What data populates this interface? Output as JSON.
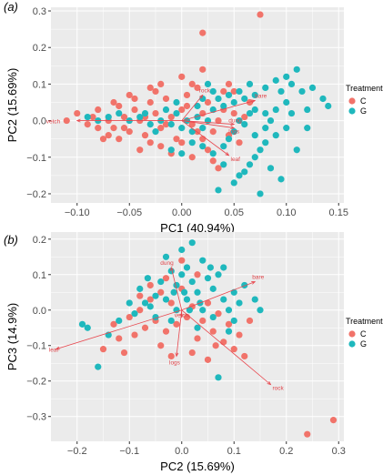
{
  "colors": {
    "C": "#f1736a",
    "G": "#1fb8bd",
    "arrow": "#e8474e",
    "panel_bg": "#ebebeb",
    "grid": "#ffffff"
  },
  "legend": {
    "title": "Treatment",
    "items": [
      "C",
      "G"
    ]
  },
  "chart_data": [
    {
      "type": "scatter",
      "panel_label": "(a)",
      "xlabel": "PC1 (40.94%)",
      "ylabel": "PC2 (15.69%)",
      "xlim": [
        -0.125,
        0.155
      ],
      "ylim": [
        -0.225,
        0.31
      ],
      "xticks": [
        -0.1,
        -0.05,
        0.0,
        0.05,
        0.1,
        0.15
      ],
      "xtick_labels": [
        "−0.10",
        "−0.05",
        "0.00",
        "0.05",
        "0.10",
        "0.15"
      ],
      "yticks": [
        -0.2,
        -0.1,
        0.0,
        0.1,
        0.2,
        0.3
      ],
      "ytick_labels": [
        "−0.2",
        "−0.1",
        "0.0",
        "0.1",
        "0.2",
        "0.3"
      ],
      "grid": true,
      "series": [
        {
          "name": "C",
          "points": [
            [
              0.075,
              0.29
            ],
            [
              0.02,
              0.24
            ],
            [
              -0.11,
              0.0
            ],
            [
              -0.1,
              0.02
            ],
            [
              -0.09,
              -0.01
            ],
            [
              -0.08,
              0.03
            ],
            [
              -0.07,
              0.0
            ],
            [
              -0.065,
              -0.02
            ],
            [
              -0.06,
              0.04
            ],
            [
              -0.055,
              0.01
            ],
            [
              -0.05,
              -0.03
            ],
            [
              -0.045,
              0.03
            ],
            [
              -0.04,
              0.0
            ],
            [
              -0.035,
              -0.04
            ],
            [
              -0.03,
              0.05
            ],
            [
              -0.025,
              0.02
            ],
            [
              -0.02,
              -0.02
            ],
            [
              -0.015,
              0.06
            ],
            [
              -0.01,
              0.01
            ],
            [
              -0.005,
              -0.05
            ],
            [
              0.0,
              0.03
            ],
            [
              0.005,
              0.07
            ],
            [
              0.01,
              -0.01
            ],
            [
              0.015,
              0.09
            ],
            [
              0.02,
              0.02
            ],
            [
              0.025,
              0.05
            ],
            [
              0.03,
              -0.03
            ],
            [
              -0.03,
              -0.06
            ],
            [
              -0.04,
              -0.08
            ],
            [
              -0.02,
              -0.07
            ],
            [
              -0.01,
              -0.09
            ],
            [
              0.0,
              -0.06
            ],
            [
              0.01,
              -0.1
            ],
            [
              0.02,
              -0.05
            ],
            [
              -0.06,
              -0.05
            ],
            [
              -0.05,
              0.07
            ],
            [
              -0.03,
              0.09
            ],
            [
              -0.02,
              0.1
            ],
            [
              0.0,
              0.12
            ],
            [
              0.01,
              0.1
            ],
            [
              -0.07,
              -0.04
            ],
            [
              -0.08,
              -0.02
            ],
            [
              0.035,
              0.0
            ],
            [
              0.04,
              0.03
            ],
            [
              0.045,
              -0.04
            ],
            [
              0.05,
              0.02
            ],
            [
              0.055,
              -0.06
            ],
            [
              0.06,
              0.01
            ],
            [
              0.03,
              -0.11
            ],
            [
              0.035,
              -0.13
            ],
            [
              0.04,
              0.08
            ],
            [
              0.015,
              -0.03
            ],
            [
              -0.045,
              0.06
            ],
            [
              -0.055,
              -0.02
            ],
            [
              -0.025,
              0.08
            ],
            [
              0.025,
              -0.08
            ],
            [
              -0.035,
              0.01
            ],
            [
              -0.015,
              -0.01
            ],
            [
              0.005,
              0.04
            ],
            [
              0.065,
              0.05
            ],
            [
              -0.085,
              0.01
            ],
            [
              -0.075,
              -0.05
            ],
            [
              -0.065,
              0.05
            ],
            [
              0.045,
              0.1
            ],
            [
              0.02,
              0.14
            ],
            [
              0.05,
              0.08
            ]
          ]
        },
        {
          "name": "G",
          "points": [
            [
              0.11,
              0.14
            ],
            [
              0.135,
              0.06
            ],
            [
              0.14,
              0.04
            ],
            [
              0.12,
              0.03
            ],
            [
              0.115,
              0.08
            ],
            [
              0.1,
              0.12
            ],
            [
              0.09,
              0.11
            ],
            [
              0.08,
              0.09
            ],
            [
              0.07,
              0.07
            ],
            [
              0.065,
              0.1
            ],
            [
              0.06,
              0.06
            ],
            [
              0.055,
              0.08
            ],
            [
              0.05,
              0.05
            ],
            [
              0.045,
              0.07
            ],
            [
              0.04,
              0.04
            ],
            [
              0.035,
              0.06
            ],
            [
              0.03,
              0.03
            ],
            [
              0.025,
              0.0
            ],
            [
              0.02,
              -0.02
            ],
            [
              0.015,
              0.01
            ],
            [
              0.01,
              -0.03
            ],
            [
              0.005,
              0.0
            ],
            [
              0.0,
              -0.02
            ],
            [
              -0.005,
              0.02
            ],
            [
              -0.01,
              -0.01
            ],
            [
              -0.02,
              0.0
            ],
            [
              -0.03,
              -0.01
            ],
            [
              -0.04,
              0.01
            ],
            [
              -0.05,
              0.0
            ],
            [
              -0.06,
              0.02
            ],
            [
              -0.07,
              0.01
            ],
            [
              -0.08,
              0.0
            ],
            [
              -0.09,
              0.01
            ],
            [
              0.1,
              -0.02
            ],
            [
              0.09,
              -0.04
            ],
            [
              0.08,
              -0.06
            ],
            [
              0.075,
              -0.08
            ],
            [
              0.07,
              -0.1
            ],
            [
              0.065,
              -0.12
            ],
            [
              0.06,
              -0.14
            ],
            [
              0.055,
              -0.15
            ],
            [
              0.085,
              -0.13
            ],
            [
              0.095,
              -0.16
            ],
            [
              0.075,
              -0.2
            ],
            [
              0.05,
              -0.17
            ],
            [
              0.04,
              -0.12
            ],
            [
              0.035,
              -0.19
            ],
            [
              0.03,
              -0.09
            ],
            [
              0.02,
              -0.07
            ],
            [
              0.01,
              -0.06
            ],
            [
              0.0,
              -0.09
            ],
            [
              -0.01,
              -0.08
            ],
            [
              0.105,
              0.02
            ],
            [
              0.11,
              -0.08
            ],
            [
              0.1,
              0.05
            ],
            [
              0.09,
              0.03
            ],
            [
              0.085,
              0.0
            ],
            [
              0.08,
              0.02
            ],
            [
              0.07,
              0.03
            ],
            [
              0.06,
              -0.01
            ],
            [
              0.05,
              -0.03
            ],
            [
              0.045,
              -0.05
            ],
            [
              0.04,
              -0.07
            ],
            [
              0.03,
              0.08
            ],
            [
              0.025,
              0.1
            ],
            [
              0.02,
              0.06
            ],
            [
              0.065,
              0.02
            ],
            [
              0.055,
              0.0
            ],
            [
              0.07,
              -0.04
            ],
            [
              0.08,
              -0.02
            ],
            [
              0.095,
              0.08
            ],
            [
              0.105,
              0.1
            ],
            [
              0.12,
              -0.02
            ],
            [
              0.015,
              0.04
            ],
            [
              -0.005,
              0.05
            ],
            [
              -0.015,
              0.03
            ],
            [
              -0.025,
              -0.03
            ],
            [
              -0.035,
              0.02
            ],
            [
              0.125,
              0.09
            ]
          ]
        }
      ],
      "vectors": [
        {
          "label": "vetch",
          "x": -0.1,
          "y": 0.0
        },
        {
          "label": "rock",
          "x": 0.02,
          "y": 0.07
        },
        {
          "label": "bare",
          "x": 0.07,
          "y": 0.055
        },
        {
          "label": "dung",
          "x": 0.05,
          "y": -0.01
        },
        {
          "label": "logs",
          "x": 0.05,
          "y": -0.02
        },
        {
          "label": "leaf",
          "x": 0.045,
          "y": -0.095
        }
      ]
    },
    {
      "type": "scatter",
      "panel_label": "(b)",
      "xlabel": "PC2 (15.69%)",
      "ylabel": "PC3 (14.9%)",
      "xlim": [
        -0.25,
        0.31
      ],
      "ylim": [
        -0.37,
        0.22
      ],
      "xticks": [
        -0.2,
        -0.1,
        0.0,
        0.1,
        0.2,
        0.3
      ],
      "xtick_labels": [
        "−0.2",
        "−0.1",
        "0.0",
        "0.1",
        "0.2",
        "0.3"
      ],
      "yticks": [
        -0.3,
        -0.2,
        -0.1,
        0.0,
        0.1,
        0.2
      ],
      "ytick_labels": [
        "−0.3",
        "−0.2",
        "−0.1",
        "0.0",
        "0.1",
        "0.2"
      ],
      "grid": true,
      "series": [
        {
          "name": "C",
          "points": [
            [
              0.29,
              -0.31
            ],
            [
              0.24,
              -0.35
            ],
            [
              -0.15,
              -0.11
            ],
            [
              -0.13,
              -0.04
            ],
            [
              -0.12,
              -0.08
            ],
            [
              -0.1,
              -0.02
            ],
            [
              -0.09,
              -0.07
            ],
            [
              -0.08,
              0.0
            ],
            [
              -0.07,
              -0.05
            ],
            [
              -0.06,
              0.03
            ],
            [
              -0.05,
              -0.03
            ],
            [
              -0.04,
              0.05
            ],
            [
              -0.03,
              -0.06
            ],
            [
              -0.02,
              0.02
            ],
            [
              -0.01,
              -0.04
            ],
            [
              0.0,
              0.06
            ],
            [
              0.01,
              -0.02
            ],
            [
              0.02,
              0.01
            ],
            [
              0.03,
              -0.08
            ],
            [
              0.04,
              -0.03
            ],
            [
              0.05,
              0.02
            ],
            [
              0.06,
              -0.06
            ],
            [
              0.07,
              -0.01
            ],
            [
              0.08,
              -0.09
            ],
            [
              0.09,
              -0.04
            ],
            [
              0.1,
              -0.11
            ],
            [
              0.11,
              -0.07
            ],
            [
              0.13,
              -0.03
            ],
            [
              -0.11,
              -0.12
            ],
            [
              -0.04,
              -0.1
            ],
            [
              -0.02,
              -0.13
            ],
            [
              0.02,
              -0.12
            ],
            [
              0.05,
              -0.14
            ],
            [
              -0.06,
              0.07
            ],
            [
              -0.03,
              0.09
            ],
            [
              0.0,
              0.14
            ],
            [
              0.03,
              0.1
            ],
            [
              -0.08,
              0.04
            ],
            [
              0.12,
              -0.13
            ],
            [
              0.065,
              -0.1
            ]
          ]
        },
        {
          "name": "G",
          "points": [
            [
              -0.19,
              -0.04
            ],
            [
              -0.18,
              -0.05
            ],
            [
              -0.16,
              -0.16
            ],
            [
              -0.14,
              -0.07
            ],
            [
              -0.12,
              -0.03
            ],
            [
              -0.1,
              0.02
            ],
            [
              -0.09,
              -0.01
            ],
            [
              -0.08,
              0.06
            ],
            [
              -0.07,
              0.02
            ],
            [
              -0.06,
              0.01
            ],
            [
              -0.05,
              0.04
            ],
            [
              -0.04,
              0.08
            ],
            [
              -0.03,
              0.03
            ],
            [
              -0.02,
              0.11
            ],
            [
              -0.01,
              0.07
            ],
            [
              0.0,
              0.1
            ],
            [
              0.01,
              0.12
            ],
            [
              0.02,
              0.08
            ],
            [
              0.03,
              0.05
            ],
            [
              0.04,
              0.14
            ],
            [
              0.05,
              0.09
            ],
            [
              0.06,
              0.06
            ],
            [
              0.07,
              0.1
            ],
            [
              0.08,
              0.03
            ],
            [
              0.09,
              0.0
            ],
            [
              0.1,
              0.05
            ],
            [
              0.11,
              0.02
            ],
            [
              0.12,
              0.07
            ],
            [
              0.14,
              0.03
            ],
            [
              0.15,
              0.0
            ],
            [
              -0.03,
              0.15
            ],
            [
              0.0,
              0.17
            ],
            [
              0.02,
              0.19
            ],
            [
              0.06,
              -0.02
            ],
            [
              0.03,
              -0.05
            ],
            [
              0.01,
              0.03
            ],
            [
              -0.01,
              0.0
            ],
            [
              -0.02,
              -0.03
            ],
            [
              0.04,
              0.0
            ],
            [
              0.07,
              -0.19
            ],
            [
              0.09,
              -0.06
            ],
            [
              0.08,
              0.12
            ],
            [
              -0.05,
              -0.02
            ],
            [
              0.1,
              -0.03
            ],
            [
              -0.015,
              0.05
            ],
            [
              0.015,
              0.0
            ],
            [
              0.035,
              0.02
            ],
            [
              0.055,
              0.12
            ],
            [
              -0.065,
              0.09
            ],
            [
              0.005,
              0.05
            ]
          ]
        }
      ],
      "vectors": [
        {
          "label": "dung",
          "x": -0.02,
          "y": 0.12
        },
        {
          "label": "bare",
          "x": 0.14,
          "y": 0.08
        },
        {
          "label": "leaf",
          "x": -0.24,
          "y": -0.11
        },
        {
          "label": "logs",
          "x": -0.01,
          "y": -0.13
        },
        {
          "label": "rock",
          "x": 0.17,
          "y": -0.21
        },
        {
          "label": "vetch",
          "x": 0.0,
          "y": -0.02
        }
      ]
    }
  ]
}
